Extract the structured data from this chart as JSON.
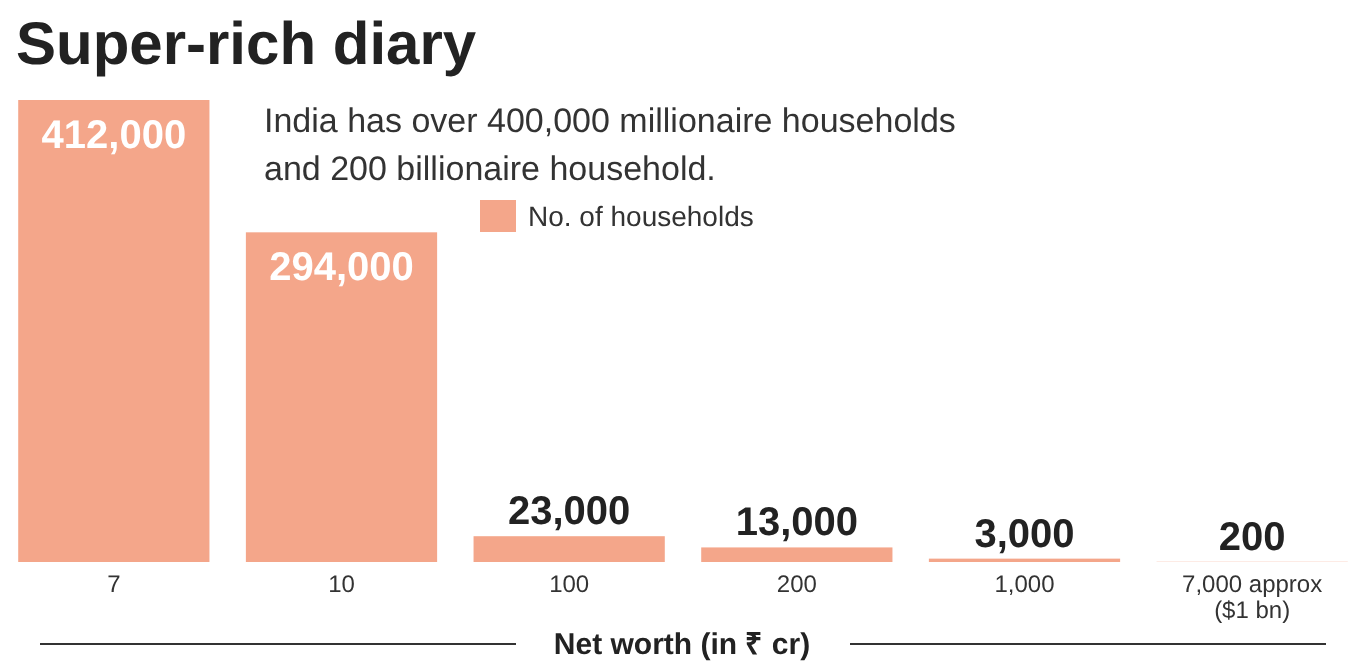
{
  "chart_data": {
    "type": "bar",
    "title": "Super-rich diary",
    "subtitle": "India has over 400,000 millionaire households and 200 billionaire household.",
    "xlabel": "Net worth (in ₹ cr)",
    "categories": [
      "7",
      "10",
      "100",
      "200",
      "1,000",
      "7,000 approx ($1 bn)"
    ],
    "series": [
      {
        "name": "No. of households",
        "color": "#f4a68a",
        "values": [
          412000,
          294000,
          23000,
          13000,
          3000,
          200
        ],
        "value_labels": [
          "412,000",
          "294,000",
          "23,000",
          "13,000",
          "3,000",
          "200"
        ]
      }
    ],
    "legend": "top",
    "grid": false
  }
}
